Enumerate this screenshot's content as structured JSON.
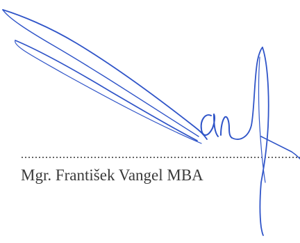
{
  "signatory": {
    "name": "Mgr. František Vangel MBA"
  },
  "signature": {
    "ink_color": "#2f54c8",
    "kind": "handwritten-signature"
  },
  "text_color": "#3a3a3a"
}
